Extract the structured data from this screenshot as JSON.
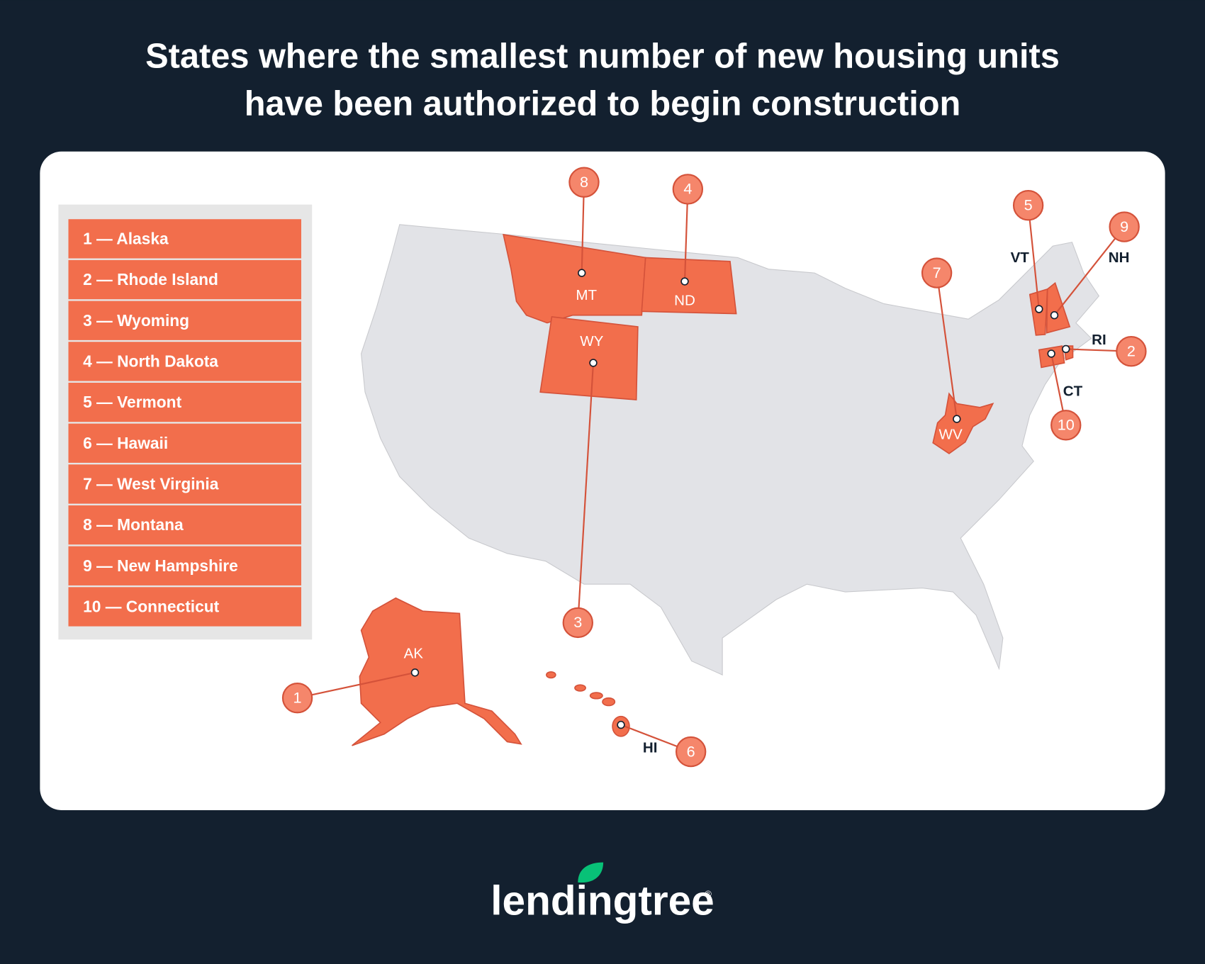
{
  "header": {
    "title_lines": [
      "States where the smallest number of new housing units",
      "have been authorized to begin construction"
    ]
  },
  "legend": {
    "items": [
      "1 — Alaska",
      "2 — Rhode Island",
      "3 — Wyoming",
      "4 — North Dakota",
      "5 — Vermont",
      "6 — Hawaii",
      "7 — West Virginia",
      "8 — Montana",
      "9 — New Hampshire",
      "10 — Connecticut"
    ]
  },
  "map": {
    "markers": [
      {
        "rank": 1,
        "state": "AK"
      },
      {
        "rank": 2,
        "state": "RI"
      },
      {
        "rank": 3,
        "state": "WY"
      },
      {
        "rank": 4,
        "state": "ND"
      },
      {
        "rank": 5,
        "state": "VT"
      },
      {
        "rank": 6,
        "state": "HI"
      },
      {
        "rank": 7,
        "state": "WV"
      },
      {
        "rank": 8,
        "state": "MT"
      },
      {
        "rank": 9,
        "state": "NH"
      },
      {
        "rank": 10,
        "state": "CT"
      }
    ]
  },
  "footer": {
    "logo": "lendingtree",
    "registered": "®"
  }
}
